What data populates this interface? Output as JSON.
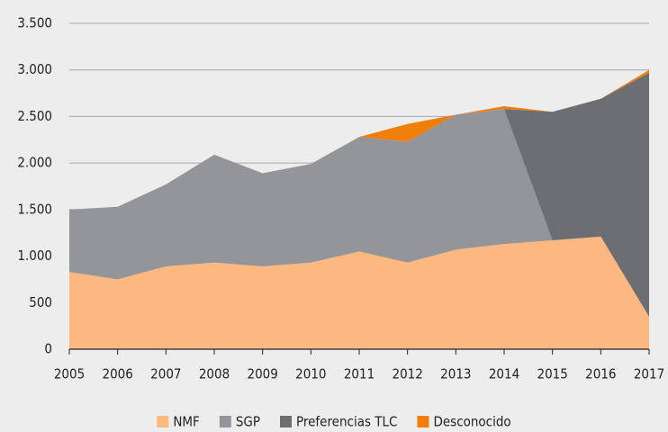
{
  "chart_data": {
    "type": "stacked_area",
    "x": [
      2005,
      2006,
      2007,
      2008,
      2009,
      2010,
      2011,
      2012,
      2013,
      2014,
      2015,
      2016,
      2017
    ],
    "xlim": [
      2005,
      2017
    ],
    "xticks": [
      2005,
      2006,
      2007,
      2008,
      2009,
      2010,
      2011,
      2012,
      2013,
      2014,
      2015,
      2016,
      2017
    ],
    "ylim": [
      0,
      3500
    ],
    "yticks": [
      0,
      500,
      {
        "value": 1000,
        "label": "1.000"
      },
      {
        "value": 1500,
        "label": "1.500"
      },
      {
        "value": 2000,
        "label": "2.000"
      },
      {
        "value": 2500,
        "label": "2.500"
      },
      {
        "value": 3000,
        "label": "3.000"
      },
      {
        "value": 3500,
        "label": "3.500"
      }
    ],
    "grid": true,
    "legend": "bottom",
    "series": [
      {
        "name": "NMF",
        "color": "#fdb882",
        "values": [
          830,
          750,
          890,
          930,
          890,
          930,
          1050,
          930,
          1070,
          1130,
          1170,
          1210,
          350
        ]
      },
      {
        "name": "SGP",
        "color": "#939598",
        "values": [
          670,
          780,
          880,
          1160,
          1000,
          1060,
          1230,
          1300,
          1450,
          1450,
          0,
          0,
          0
        ]
      },
      {
        "name": "Preferencias TLC",
        "color": "#6d6e71",
        "values": [
          0,
          0,
          0,
          0,
          0,
          0,
          0,
          0,
          0,
          0,
          1380,
          1480,
          2620
        ]
      },
      {
        "name": "Desconocido",
        "color": "#f07f09",
        "values": [
          0,
          0,
          0,
          0,
          0,
          0,
          0,
          190,
          0,
          30,
          0,
          0,
          30
        ]
      }
    ]
  }
}
